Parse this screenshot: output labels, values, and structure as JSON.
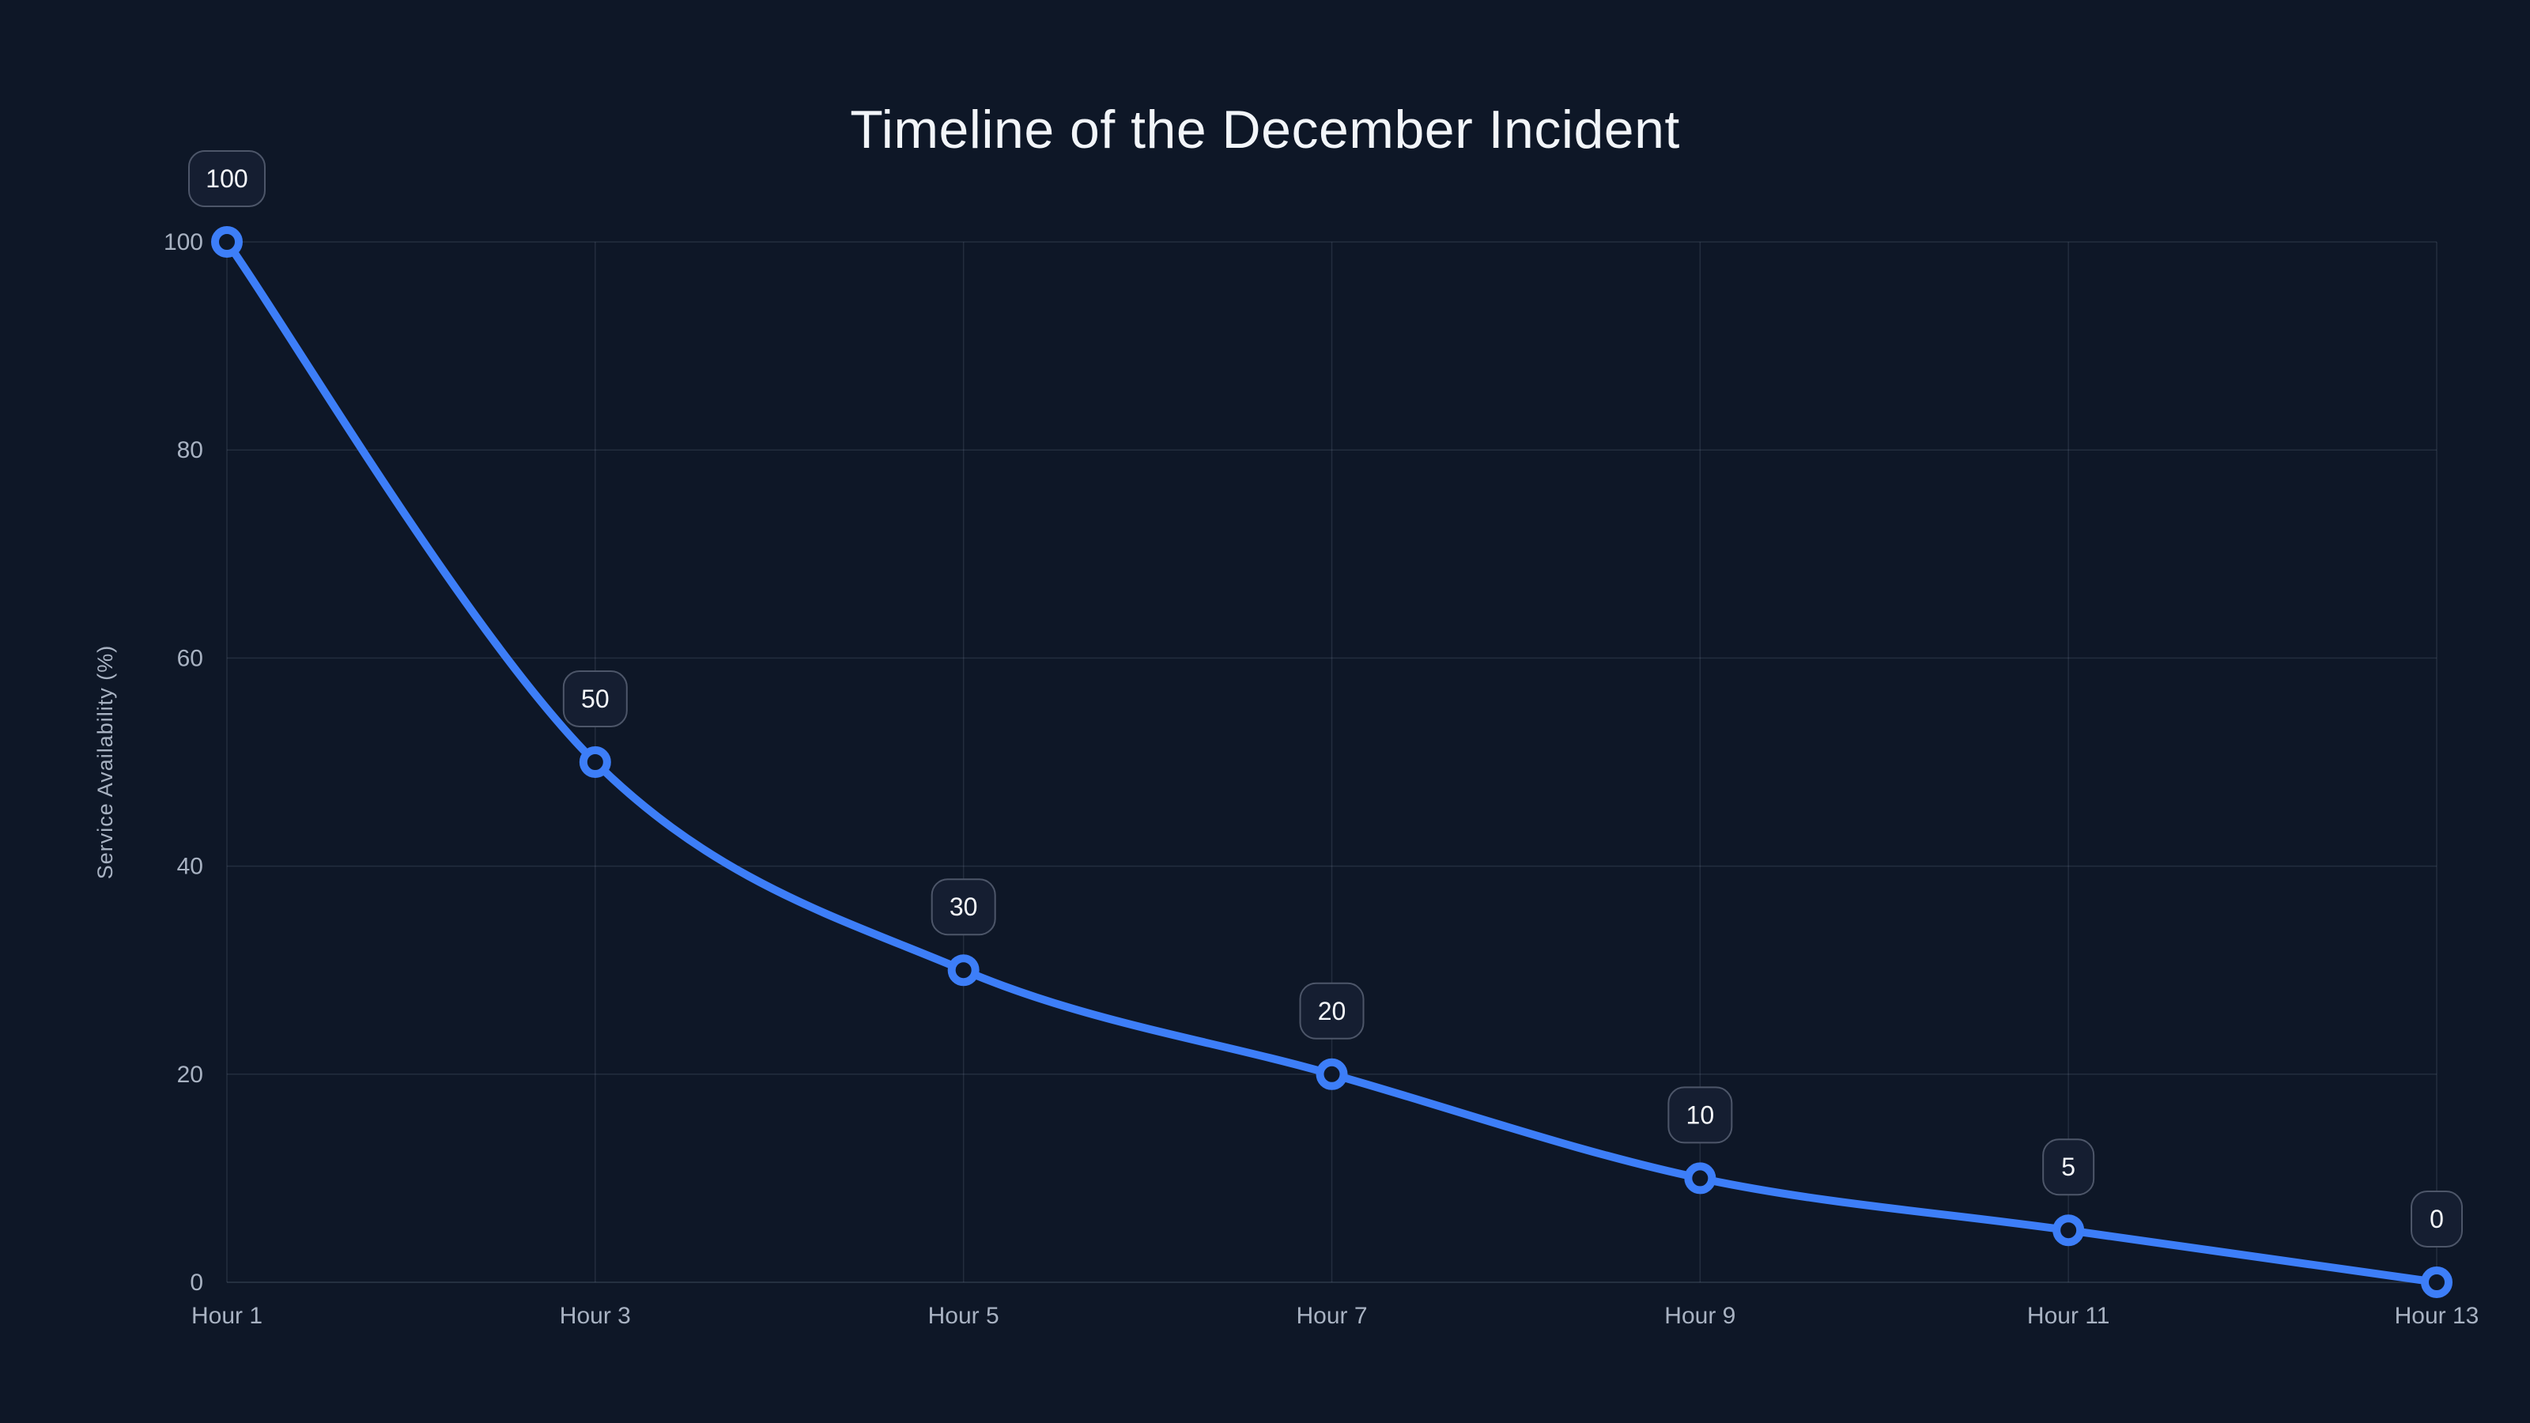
{
  "chart_data": {
    "type": "line",
    "title": "Timeline of the December Incident",
    "categories": [
      "Hour 1",
      "Hour 3",
      "Hour 5",
      "Hour 7",
      "Hour 9",
      "Hour 11",
      "Hour 13"
    ],
    "values": [
      100,
      50,
      30,
      20,
      10,
      5,
      0
    ],
    "point_labels": [
      "100",
      "50",
      "30",
      "20",
      "10",
      "5",
      "0"
    ],
    "xlabel": "",
    "ylabel": "Service Availability (%)",
    "ylim": [
      0,
      100
    ],
    "yticks": [
      0,
      20,
      40,
      60,
      80,
      100
    ],
    "grid": true,
    "legend": false,
    "line_style": "spline",
    "marker": "open-circle",
    "colors": {
      "background": "#0e1727",
      "line": "#3d7ef8",
      "marker_ring": "#3d7ef8",
      "marker_fill": "#0e1727",
      "grid": "rgba(148,163,184,0.16)",
      "axis_baseline": "rgba(148,163,184,0.24)",
      "tick_label": "#a8b2c2",
      "axis_title": "#a8b2c2",
      "title": "#f2f5f9",
      "badge_fill": "#151e31",
      "badge_border": "#4d5669",
      "badge_text": "#f5f7fa"
    }
  }
}
